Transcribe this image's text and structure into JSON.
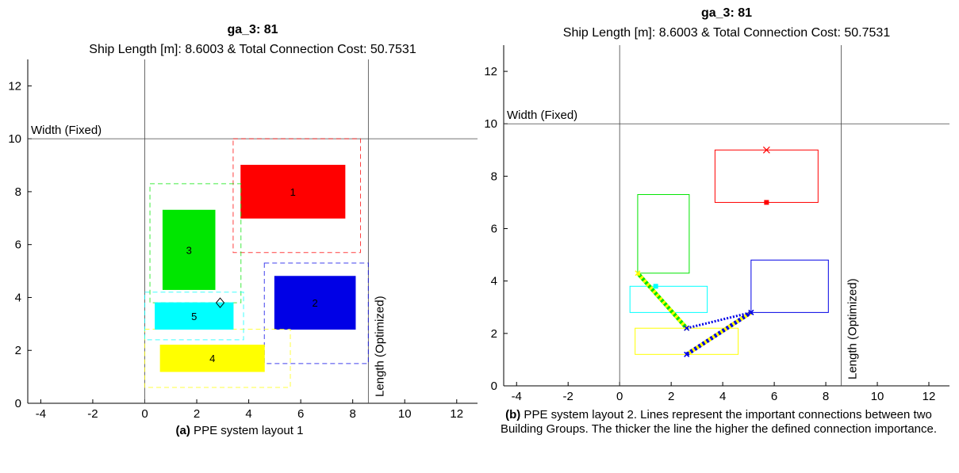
{
  "colors": {
    "red": "#ff0000",
    "blue": "#0000e6",
    "green": "#00e600",
    "cyan": "#00ffff",
    "yellow": "#ffff00",
    "axis": "#000000"
  },
  "chart_data": [
    {
      "type": "scatter",
      "title": "ga_3: 81",
      "subtitle": "Ship Length [m]: 8.6003  &  Total Connection Cost: 50.7531",
      "xlim": [
        -4.5,
        12.8
      ],
      "ylim": [
        0,
        13
      ],
      "xticks": [
        -4,
        -2,
        0,
        2,
        4,
        6,
        8,
        10,
        12
      ],
      "yticks": [
        0,
        2,
        4,
        6,
        8,
        10,
        12
      ],
      "grid": false,
      "ref_lines": {
        "length_x": 8.6003,
        "length_label": "Length (Optimized)",
        "width_y": 10,
        "width_label": "Width (Fixed)"
      },
      "rooms": [
        {
          "id": "1",
          "color": "red",
          "x": [
            3.7,
            7.7
          ],
          "y": [
            7.0,
            9.0
          ],
          "zone_x": [
            3.4,
            8.3
          ],
          "zone_y": [
            5.7,
            10.0
          ]
        },
        {
          "id": "2",
          "color": "blue",
          "x": [
            5.0,
            8.1
          ],
          "y": [
            2.8,
            4.8
          ],
          "zone_x": [
            4.6,
            8.6
          ],
          "zone_y": [
            1.5,
            5.3
          ]
        },
        {
          "id": "3",
          "color": "green",
          "x": [
            0.7,
            2.7
          ],
          "y": [
            4.3,
            7.3
          ],
          "zone_x": [
            0.2,
            3.7
          ],
          "zone_y": [
            3.8,
            8.3
          ]
        },
        {
          "id": "4",
          "color": "yellow",
          "x": [
            0.6,
            4.6
          ],
          "y": [
            1.2,
            2.2
          ],
          "zone_x": [
            0.0,
            5.6
          ],
          "zone_y": [
            0.6,
            2.8
          ]
        },
        {
          "id": "5",
          "color": "cyan",
          "x": [
            0.4,
            3.4
          ],
          "y": [
            2.8,
            3.8
          ],
          "zone_x": [
            0.0,
            3.8
          ],
          "zone_y": [
            2.4,
            4.2
          ]
        }
      ],
      "marker": {
        "x": 2.9,
        "y": 3.8,
        "shape": "diamond"
      },
      "caption_label": "(a)",
      "caption_text": " PPE system layout 1"
    },
    {
      "type": "scatter",
      "title": "ga_3: 81",
      "subtitle": "Ship Length [m]: 8.6003  &  Total Connection Cost: 50.7531",
      "xlim": [
        -4.5,
        12.8
      ],
      "ylim": [
        0,
        13
      ],
      "xticks": [
        -4,
        -2,
        0,
        2,
        4,
        6,
        8,
        10,
        12
      ],
      "yticks": [
        0,
        2,
        4,
        6,
        8,
        10,
        12
      ],
      "grid": false,
      "ref_lines": {
        "length_x": 8.6003,
        "length_label": "Length (Optimized)",
        "width_y": 10,
        "width_label": "Width (Fixed)"
      },
      "rooms": [
        {
          "color": "red",
          "x": [
            3.7,
            7.7
          ],
          "y": [
            7.0,
            9.0
          ]
        },
        {
          "color": "blue",
          "x": [
            5.1,
            8.1
          ],
          "y": [
            2.8,
            4.8
          ]
        },
        {
          "color": "green",
          "x": [
            0.7,
            2.7
          ],
          "y": [
            4.3,
            7.3
          ]
        },
        {
          "color": "yellow",
          "x": [
            0.6,
            4.6
          ],
          "y": [
            1.2,
            2.2
          ]
        },
        {
          "color": "cyan",
          "x": [
            0.4,
            3.4
          ],
          "y": [
            2.8,
            3.8
          ]
        }
      ],
      "points": [
        {
          "x": 5.7,
          "y": 9.0,
          "color": "red",
          "shape": "x"
        },
        {
          "x": 5.7,
          "y": 7.0,
          "color": "red",
          "shape": "square"
        },
        {
          "x": 1.4,
          "y": 3.8,
          "color": "cyan",
          "shape": "square"
        }
      ],
      "connections": [
        {
          "from": [
            0.7,
            4.3
          ],
          "to": [
            2.6,
            2.2
          ],
          "colors": [
            "green",
            "yellow"
          ],
          "width": 5
        },
        {
          "from": [
            2.6,
            1.2
          ],
          "to": [
            5.1,
            2.8
          ],
          "colors": [
            "yellow",
            "blue"
          ],
          "width": 5
        },
        {
          "from": [
            2.6,
            2.2
          ],
          "to": [
            5.1,
            2.8
          ],
          "colors": [
            "blue"
          ],
          "width": 3
        }
      ],
      "caption_label": "(b)",
      "caption_text": " PPE system layout 2. Lines represent the important connections between two Building Groups. The thicker the line the higher the defined connection importance."
    }
  ]
}
